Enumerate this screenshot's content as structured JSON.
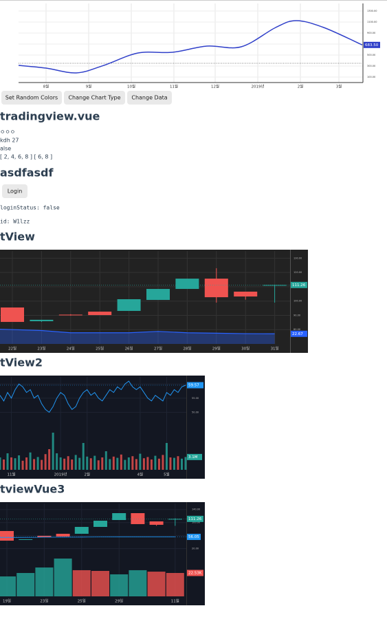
{
  "chart1": {
    "type": "line",
    "color": "#2f3fc9",
    "x": [
      0,
      20,
      42,
      62,
      87,
      112,
      137,
      162,
      187,
      202,
      222,
      250
    ],
    "values": [
      312,
      262,
      175,
      312,
      537,
      550,
      662,
      650,
      1000,
      1125,
      1000,
      683.5
    ],
    "last_label": "683.50",
    "price_line": 350,
    "xlim": [
      0,
      250
    ],
    "ylim": [
      0,
      1400
    ],
    "xticks": [
      {
        "value": 20,
        "label": "8월"
      },
      {
        "value": 51,
        "label": "9월"
      },
      {
        "value": 82,
        "label": "10월"
      },
      {
        "value": 113,
        "label": "11월"
      },
      {
        "value": 143,
        "label": "12월"
      },
      {
        "value": 174,
        "label": "2019년"
      },
      {
        "value": 205,
        "label": "2월"
      },
      {
        "value": 233,
        "label": "3월"
      }
    ],
    "yticks": [
      {
        "value": 100,
        "label": "100.00"
      },
      {
        "value": 300,
        "label": "300.00"
      },
      {
        "value": 500,
        "label": "500.00"
      },
      {
        "value": 700,
        "label": "700.00"
      },
      {
        "value": 900,
        "label": "900.00"
      },
      {
        "value": 1100,
        "label": "1100.00"
      },
      {
        "value": 1300,
        "label": "1300.00"
      }
    ]
  },
  "buttons": [
    "Set Random Colors",
    "Change Chart Type",
    "Change Data"
  ],
  "section1": {
    "title": "tradingview.vue",
    "lines": [
      "ㅇㅇㅇ",
      "kdh 27",
      "alse",
      "[ 2, 4, 6, 8 ] [ 6, 8 ]"
    ]
  },
  "section2": {
    "title": "asdfasdf",
    "button": "Login",
    "lines": [
      "loginStatus: false",
      "id: W1lzz"
    ]
  },
  "section3": {
    "title": "tView"
  },
  "chart3": {
    "type": "candlestick",
    "categories": [
      "22일",
      "23일",
      "24일",
      "25일",
      "26일",
      "27일",
      "28일",
      "29일",
      "30일",
      "31일"
    ],
    "open": [
      95.5,
      85.9,
      90.5,
      92.6,
      93.1,
      100.8,
      108.5,
      115.7,
      106.6,
      110.9
    ],
    "high": [
      95.5,
      86.9,
      90.8,
      92.6,
      101.3,
      108.5,
      115.7,
      123,
      106.6,
      111.5
    ],
    "low": [
      85.4,
      85.4,
      89.8,
      90.2,
      93.1,
      100.8,
      108.5,
      98.9,
      101,
      98.9
    ],
    "close": [
      85.4,
      86.9,
      90.0,
      90.2,
      101.3,
      108.5,
      115.7,
      102.7,
      103.2,
      111.26
    ],
    "up_color": "#26a69a",
    "down_color": "#ef5350",
    "ylim": [
      70,
      135
    ],
    "yticks": [
      {
        "value": 130,
        "label": "130.00"
      },
      {
        "value": 120,
        "label": "120.00"
      },
      {
        "value": 110,
        "label": "110.00"
      },
      {
        "value": 100,
        "label": "100.00"
      },
      {
        "value": 90,
        "label": "90.00"
      },
      {
        "value": 80,
        "label": "80.00"
      }
    ],
    "last_label": "111.26",
    "volume": {
      "values": [
        33,
        30,
        25,
        25,
        25,
        28,
        25,
        24,
        23,
        22.67
      ],
      "ylim": [
        0,
        100
      ],
      "color": "#2962ff",
      "last_label": "22.67"
    }
  },
  "section4": {
    "title": "tView2"
  },
  "chart4": {
    "type": "line",
    "color": "#2196f3",
    "values": [
      56,
      54,
      57,
      55,
      58,
      60,
      59,
      57,
      58,
      55,
      56,
      53,
      51,
      50,
      52,
      55,
      57,
      56,
      53,
      51,
      52,
      55,
      57,
      58,
      56,
      57,
      55,
      54,
      56,
      58,
      57,
      59,
      58,
      60,
      61,
      59,
      58,
      59,
      57,
      55,
      54,
      56,
      55,
      54,
      57,
      56,
      58,
      57,
      59,
      59.57
    ],
    "ylim": [
      45,
      62
    ],
    "yticks": [
      {
        "value": 60,
        "label": "60.00"
      },
      {
        "value": 55,
        "label": "55.00"
      },
      {
        "value": 50,
        "label": "50.00"
      }
    ],
    "last_label": "59.57",
    "xticks": [
      {
        "value": 3,
        "label": "11월"
      },
      {
        "value": 16,
        "label": "2019년"
      },
      {
        "value": 23,
        "label": "2월"
      },
      {
        "value": 37,
        "label": "4월"
      },
      {
        "value": 44,
        "label": "5월"
      }
    ],
    "volume": {
      "values": [
        3,
        2.5,
        4,
        3,
        2.8,
        3.5,
        2.2,
        3,
        4.2,
        2.6,
        3.1,
        2.4,
        3.8,
        5,
        9,
        4,
        3,
        2.7,
        3.3,
        2.5,
        3.6,
        2.9,
        6.5,
        3.2,
        2.8,
        3.4,
        2.3,
        3,
        4.5,
        2.6,
        3.2,
        2.9,
        3.7,
        2.4,
        3,
        3.3,
        2.6,
        3.9,
        2.8,
        3.1,
        2.5,
        3.4,
        2.7,
        3.6,
        6.5,
        3,
        2.9,
        3.3,
        2.7,
        3.1
      ],
      "ylim": [
        0,
        10
      ],
      "up_color": "#26a69a",
      "down_color": "#ef5350",
      "last_label": "3.1M"
    }
  },
  "section5": {
    "title": "tviewVue3"
  },
  "chart5": {
    "type": "candlestick",
    "open": [
      74.1,
      46.8,
      59.3,
      65.6,
      65.6,
      86.7,
      107.8,
      128.9,
      103.6,
      110
    ],
    "high": [
      74.1,
      48.8,
      59.3,
      65.6,
      86.7,
      105.7,
      128.9,
      128.9,
      103.6,
      113
    ],
    "low": [
      44.5,
      46.8,
      55.1,
      57.2,
      65.6,
      86.7,
      107.8,
      95.2,
      90,
      90
    ],
    "close": [
      44.5,
      48.8,
      55.1,
      57.2,
      86.7,
      105.7,
      128.9,
      95.2,
      93.1,
      111.26
    ],
    "up_color": "#26a69a",
    "down_color": "#ef5350",
    "ylim": [
      15,
      150
    ],
    "yticks": [
      {
        "value": 140,
        "label": "140.00"
      },
      {
        "value": 100,
        "label": "100.00"
      },
      {
        "value": 60,
        "label": "60.00"
      },
      {
        "value": 20,
        "label": "20.00"
      }
    ],
    "last_label": "111.26",
    "xticks": [
      {
        "value": 0,
        "label": "19일"
      },
      {
        "value": 2,
        "label": "23일"
      },
      {
        "value": 4,
        "label": "25일"
      },
      {
        "value": 6,
        "label": "29일"
      },
      {
        "value": 9,
        "label": "11월"
      }
    ],
    "ma": {
      "values": [
        54,
        54.5,
        55,
        55.2,
        55.5,
        55.8,
        56,
        56,
        56.05,
        56.05
      ],
      "color": "#2196f3",
      "last_label": "56.05"
    },
    "volume": {
      "values": [
        19.2,
        22.5,
        27.8,
        36.4,
        25.2,
        24.5,
        21.2,
        25.2,
        23.8,
        22.53
      ],
      "ylim": [
        0,
        40
      ],
      "colors": [
        "#26a69a",
        "#26a69a",
        "#26a69a",
        "#26a69a",
        "#ef5350",
        "#ef5350",
        "#26a69a",
        "#26a69a",
        "#ef5350",
        "#ef5350"
      ],
      "last_label": "22.53K"
    }
  }
}
